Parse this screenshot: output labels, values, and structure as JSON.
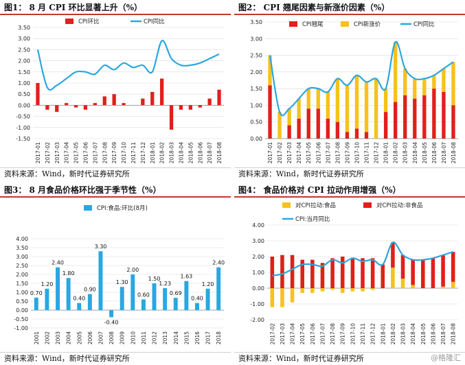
{
  "watermark": "@格隆汇",
  "colors": {
    "red": "#e0201b",
    "blue": "#2aa7df",
    "yellow": "#f6c21b",
    "grid": "#d9d9d9"
  },
  "charts": [
    {
      "title": "图1：  8 月 CPI 环比显著上升（%）",
      "source": "资料来源：Wind，新时代证券研究所",
      "chart_data": {
        "type": "bar",
        "categories": [
          "2017-01",
          "2017-02",
          "2017-03",
          "2017-04",
          "2017-05",
          "2017-06",
          "2017-07",
          "2017-08",
          "2017-09",
          "2017-10",
          "2017-11",
          "2017-12",
          "2018-01",
          "2018-02",
          "2018-03",
          "2018-04",
          "2018-05",
          "2018-06",
          "2018-07",
          "2018-08"
        ],
        "series": [
          {
            "name": "CPI环比",
            "type": "bar",
            "color": "#e0201b",
            "values": [
              1.0,
              -0.2,
              -0.3,
              0.1,
              -0.1,
              -0.2,
              0.1,
              0.4,
              0.5,
              0.1,
              0.0,
              0.3,
              0.6,
              1.2,
              -1.1,
              -0.2,
              -0.2,
              -0.1,
              0.3,
              0.7
            ]
          },
          {
            "name": "CPI同比",
            "type": "line",
            "color": "#2aa7df",
            "values": [
              2.5,
              0.8,
              0.9,
              1.2,
              1.5,
              1.5,
              1.4,
              1.8,
              1.6,
              1.9,
              1.7,
              1.8,
              1.5,
              2.9,
              2.1,
              1.8,
              1.8,
              1.9,
              2.1,
              2.3
            ]
          }
        ],
        "ylim": [
          -1.5,
          3.5
        ],
        "yticks": [
          "3.50",
          "3.00",
          "2.50",
          "2.00",
          "1.50",
          "1.00",
          "0.50",
          "0.00",
          "-0.50",
          "-1.00",
          "-1.50"
        ]
      }
    },
    {
      "title": "图2：  CPI 翘尾因素与新涨价因素（%）",
      "source": "资料来源：Wind，新时代证券研究所",
      "chart_data": {
        "type": "bar",
        "stacked": true,
        "categories": [
          "2017-01",
          "2017-02",
          "2017-03",
          "2017-04",
          "2017-05",
          "2017-06",
          "2017-07",
          "2017-08",
          "2017-09",
          "2017-10",
          "2017-11",
          "2017-12",
          "2018-01",
          "2018-02",
          "2018-03",
          "2018-04",
          "2018-05",
          "2018-06",
          "2018-07",
          "2018-08"
        ],
        "series": [
          {
            "name": "CPI翘尾",
            "type": "bar",
            "color": "#e0201b",
            "values": [
              1.6,
              0.0,
              0.4,
              0.6,
              0.9,
              0.9,
              0.6,
              0.5,
              0.2,
              0.3,
              0.2,
              0.0,
              0.8,
              1.1,
              1.3,
              1.2,
              1.3,
              1.5,
              1.4,
              1.0
            ]
          },
          {
            "name": "CPI新涨价",
            "type": "bar",
            "color": "#f6c21b",
            "values": [
              0.9,
              0.8,
              0.5,
              0.6,
              0.6,
              0.6,
              0.8,
              1.3,
              1.4,
              1.6,
              1.5,
              1.8,
              0.7,
              1.8,
              0.8,
              0.6,
              0.5,
              0.4,
              0.7,
              1.3
            ]
          },
          {
            "name": "CPI同比",
            "type": "line",
            "color": "#2aa7df",
            "values": [
              2.5,
              0.8,
              0.9,
              1.2,
              1.5,
              1.5,
              1.4,
              1.8,
              1.6,
              1.9,
              1.7,
              1.8,
              1.5,
              2.9,
              2.1,
              1.8,
              1.8,
              1.9,
              2.1,
              2.3
            ]
          }
        ],
        "ylim": [
          0.0,
          3.5
        ],
        "yticks": [
          "3.50",
          "3.00",
          "2.50",
          "2.00",
          "1.50",
          "1.00",
          "0.50",
          "0.00"
        ]
      }
    },
    {
      "title": "图3：  8 月食品价格环比强于季节性（%）",
      "source": "资料来源：Wind，新时代证券研究所",
      "chart_data": {
        "type": "bar",
        "categories": [
          "2001",
          "2002",
          "2003",
          "2004",
          "2005",
          "2006",
          "2007",
          "2008",
          "2009",
          "2010",
          "2011",
          "2012",
          "2013",
          "2014",
          "2015",
          "2016",
          "2017",
          "2018"
        ],
        "series": [
          {
            "name": "CPI:食品:环比(8月)",
            "type": "bar",
            "color": "#2aa7df",
            "values": [
              0.7,
              1.2,
              2.4,
              1.8,
              0.4,
              0.9,
              3.3,
              -0.4,
              1.3,
              2.0,
              0.6,
              1.5,
              1.23,
              0.69,
              1.63,
              0.4,
              1.2,
              2.4
            ],
            "labels": [
              "0.70",
              "1.20",
              "2.40",
              "1.80",
              "0.40",
              "0.90",
              "3.30",
              "-0.40",
              "1.30",
              "2.00",
              "0.60",
              "1.50",
              "1.23",
              "0.69",
              "1.63",
              "0.40",
              "1.20",
              "2.40"
            ]
          }
        ],
        "ylim": [
          -1.0,
          4.0
        ],
        "yticks": [
          "4.00",
          "3.50",
          "3.00",
          "2.50",
          "2.00",
          "1.50",
          "1.00",
          "0.50",
          "0.00",
          "-0.50",
          "-1.00"
        ]
      }
    },
    {
      "title": "图4：  食品价格对 CPI 拉动作用增强（%）",
      "source": "资料来源：Wind，新时代证券研究所",
      "chart_data": {
        "type": "bar",
        "stacked": true,
        "categories": [
          "2017-02",
          "2017-03",
          "2017-04",
          "2017-05",
          "2017-06",
          "2017-07",
          "2017-08",
          "2017-09",
          "2017-10",
          "2017-11",
          "2017-12",
          "2018-01",
          "2018-02",
          "2018-03",
          "2018-04",
          "2018-05",
          "2018-06",
          "2018-07",
          "2018-08"
        ],
        "series": [
          {
            "name": "对CPI拉动:食品",
            "type": "bar",
            "color": "#f6c21b",
            "values": [
              -1.2,
              -1.2,
              -0.9,
              -0.3,
              -0.3,
              -0.2,
              -0.1,
              -0.3,
              -0.2,
              -0.2,
              -0.1,
              0.0,
              1.3,
              0.6,
              0.2,
              0.0,
              0.0,
              0.1,
              0.4
            ]
          },
          {
            "name": "对CPI拉动:非食品",
            "type": "bar",
            "color": "#e0201b",
            "values": [
              2.0,
              2.1,
              2.1,
              1.8,
              1.8,
              1.6,
              1.9,
              2.0,
              1.9,
              1.9,
              1.9,
              1.5,
              1.6,
              1.5,
              1.6,
              1.8,
              1.9,
              2.0,
              1.9
            ]
          },
          {
            "name": "CPI:当月同比",
            "type": "line",
            "color": "#2aa7df",
            "values": [
              0.8,
              0.9,
              1.2,
              1.5,
              1.5,
              1.4,
              1.8,
              1.6,
              1.9,
              1.7,
              1.8,
              1.5,
              2.9,
              2.1,
              1.8,
              1.8,
              1.9,
              2.1,
              2.3
            ]
          }
        ],
        "ylim": [
          -2.0,
          4.0
        ],
        "yticks": [
          "4.00",
          "3.00",
          "2.00",
          "1.00",
          "0.00",
          "-1.00",
          "-2.00"
        ]
      }
    }
  ]
}
